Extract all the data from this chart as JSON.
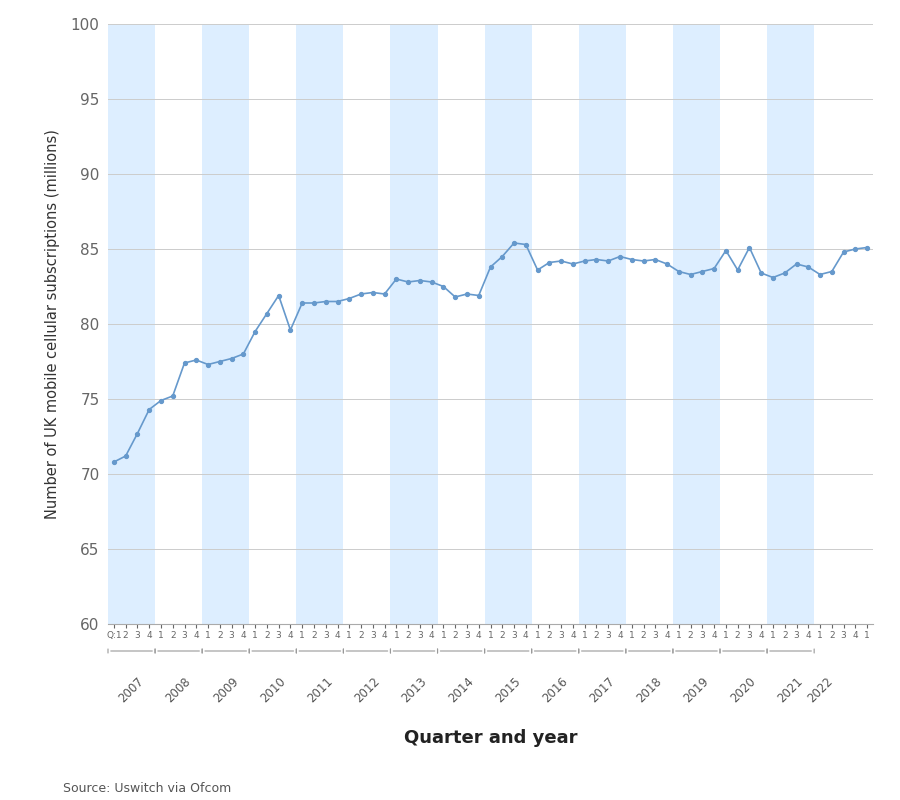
{
  "title": "",
  "ylabel": "Number of UK mobile cellular subscriptions (millions)",
  "xlabel": "Quarter and year",
  "source": "Source: Uswitch via Ofcom",
  "ylim": [
    60,
    100
  ],
  "yticks": [
    60,
    65,
    70,
    75,
    80,
    85,
    90,
    95,
    100
  ],
  "line_color": "#6699cc",
  "marker_color": "#6699cc",
  "bg_color": "#ffffff",
  "stripe_color": "#ddeeff",
  "values": [
    70.8,
    71.2,
    72.7,
    74.3,
    74.9,
    75.2,
    77.4,
    77.6,
    77.3,
    77.5,
    77.7,
    78.0,
    79.5,
    80.7,
    81.9,
    79.6,
    81.4,
    81.4,
    81.5,
    81.5,
    81.7,
    82.0,
    82.1,
    82.0,
    83.0,
    82.8,
    82.9,
    82.8,
    82.5,
    81.8,
    82.0,
    81.9,
    83.8,
    84.5,
    85.4,
    85.3,
    83.6,
    84.1,
    84.2,
    84.0,
    84.2,
    84.3,
    84.2,
    84.5,
    84.3,
    84.2,
    84.3,
    84.0,
    83.5,
    83.3,
    83.5,
    83.7,
    84.9,
    83.6,
    85.1,
    83.4,
    83.1,
    83.4,
    84.0,
    83.8,
    83.3,
    83.5,
    84.8,
    85.0,
    85.1
  ],
  "years": [
    2007,
    2008,
    2009,
    2010,
    2011,
    2012,
    2013,
    2014,
    2015,
    2016,
    2017,
    2018,
    2019,
    2020,
    2021,
    2022
  ]
}
